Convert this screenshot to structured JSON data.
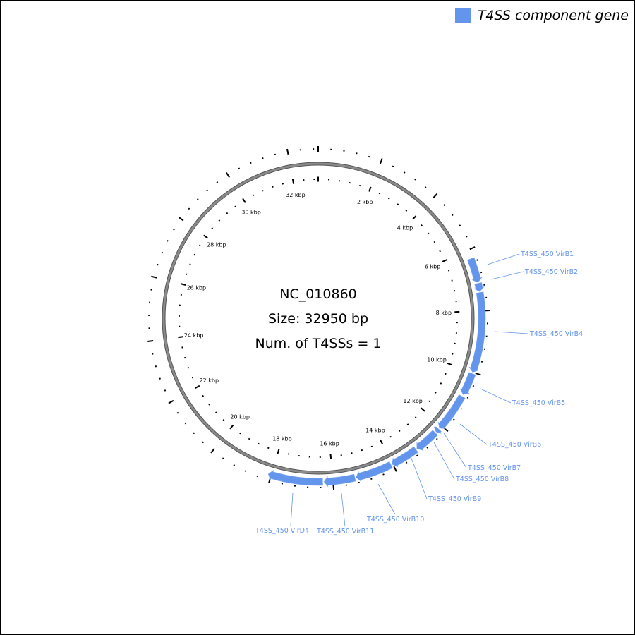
{
  "legend": {
    "label": "T4SS component gene",
    "color": "#6495ED"
  },
  "plasmid": {
    "name": "NC_010860",
    "size_text": "Size: 32950 bp",
    "t4ss_text": "Num. of T4SSs = 1",
    "length_bp": 32950
  },
  "colors": {
    "backbone": "#808080",
    "gene": "#6495ED",
    "label": "#6495ED",
    "tick": "#000000"
  },
  "ticks": {
    "major_step_bp": 2000,
    "minor_step_bp": 400,
    "label_unit": "kbp"
  },
  "tick_labels": [
    "2 kbp",
    "4 kbp",
    "6 kbp",
    "8 kbp",
    "10 kbp",
    "12 kbp",
    "14 kbp",
    "16 kbp",
    "18 kbp",
    "20 kbp",
    "22 kbp",
    "24 kbp",
    "26 kbp",
    "28 kbp",
    "30 kbp",
    "32 kbp"
  ],
  "genes": [
    {
      "label": "T4SS_450 VirB1",
      "start": 6290,
      "end": 7080,
      "strand": "+"
    },
    {
      "label": "T4SS_450 VirB2",
      "start": 7110,
      "end": 7380,
      "strand": "+"
    },
    {
      "label": "T4SS_450 VirB4",
      "start": 7410,
      "end": 10000,
      "strand": "+"
    },
    {
      "label": "T4SS_450 VirB5",
      "start": 10050,
      "end": 10780,
      "strand": "+"
    },
    {
      "label": "T4SS_450 VirB6",
      "start": 10850,
      "end": 12100,
      "strand": "+"
    },
    {
      "label": "T4SS_450 VirB7",
      "start": 12140,
      "end": 12260,
      "strand": "+"
    },
    {
      "label": "T4SS_450 VirB8",
      "start": 12300,
      "end": 13080,
      "strand": "+"
    },
    {
      "label": "T4SS_450 VirB9",
      "start": 13120,
      "end": 14020,
      "strand": "+"
    },
    {
      "label": "T4SS_450 VirB10",
      "start": 14060,
      "end": 15250,
      "strand": "+"
    },
    {
      "label": "T4SS_450 VirB11",
      "start": 15290,
      "end": 16290,
      "strand": "+"
    },
    {
      "label": "T4SS_450 VirD4",
      "start": 16330,
      "end": 18100,
      "strand": "+"
    }
  ]
}
